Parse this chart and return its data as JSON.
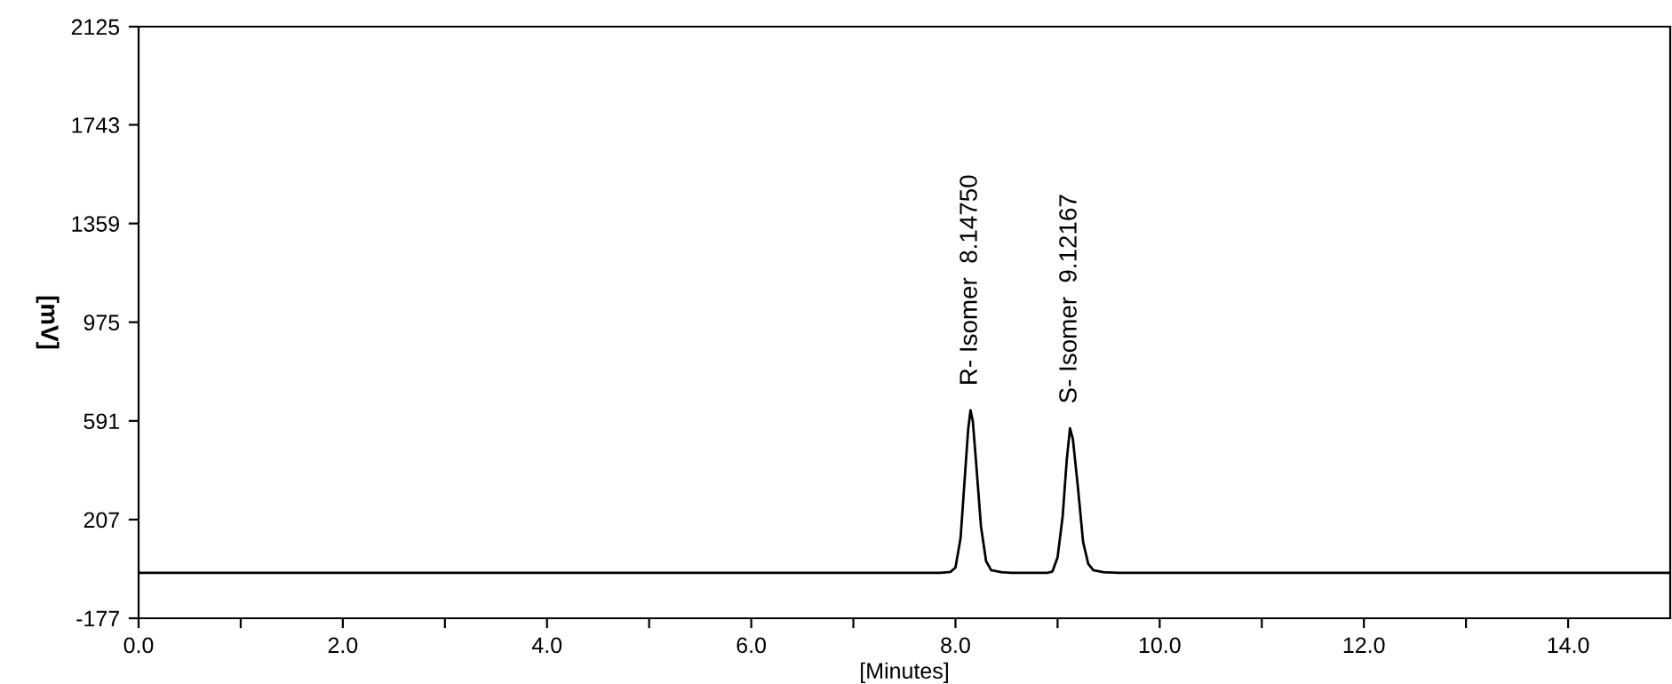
{
  "chart_data": {
    "type": "line",
    "xlabel": "[Minutes]",
    "ylabel": "[mV]",
    "series": [
      {
        "color": "#000000",
        "x": [
          0,
          7.85,
          7.95,
          8.0,
          8.05,
          8.1,
          8.125,
          8.1475,
          8.17,
          8.2,
          8.25,
          8.3,
          8.35,
          8.45,
          8.55,
          8.9,
          8.95,
          9.0,
          9.05,
          9.09,
          9.1217,
          9.15,
          9.2,
          9.25,
          9.3,
          9.35,
          9.45,
          9.6,
          15
        ],
        "values": [
          0,
          0,
          3,
          20,
          135,
          420,
          560,
          632,
          590,
          440,
          180,
          45,
          10,
          2,
          0,
          0,
          5,
          60,
          220,
          440,
          562,
          520,
          330,
          120,
          35,
          10,
          2,
          0,
          0
        ]
      }
    ],
    "annotations": [
      {
        "text": "R- Isomer  8.14750",
        "x": 8.1475,
        "y": 632
      },
      {
        "text": "S- Isomer  9.12167",
        "x": 9.1217,
        "y": 562
      }
    ],
    "xlim": [
      0,
      15
    ],
    "ylim": [
      -177,
      2125
    ],
    "xticks": [
      {
        "value": 0,
        "label": "0.0"
      },
      {
        "value": 1,
        "label": null
      },
      {
        "value": 2,
        "label": "2.0"
      },
      {
        "value": 3,
        "label": null
      },
      {
        "value": 4,
        "label": "4.0"
      },
      {
        "value": 5,
        "label": null
      },
      {
        "value": 6,
        "label": "6.0"
      },
      {
        "value": 7,
        "label": null
      },
      {
        "value": 8,
        "label": "8.0"
      },
      {
        "value": 9,
        "label": null
      },
      {
        "value": 10,
        "label": "10.0"
      },
      {
        "value": 11,
        "label": null
      },
      {
        "value": 12,
        "label": "12.0"
      },
      {
        "value": 13,
        "label": null
      },
      {
        "value": 14,
        "label": "14.0"
      }
    ],
    "yticks": [
      -177,
      207,
      591,
      975,
      1359,
      1743,
      2125
    ],
    "grid": false,
    "legend": false,
    "marker": "none",
    "line_style": "solid"
  }
}
